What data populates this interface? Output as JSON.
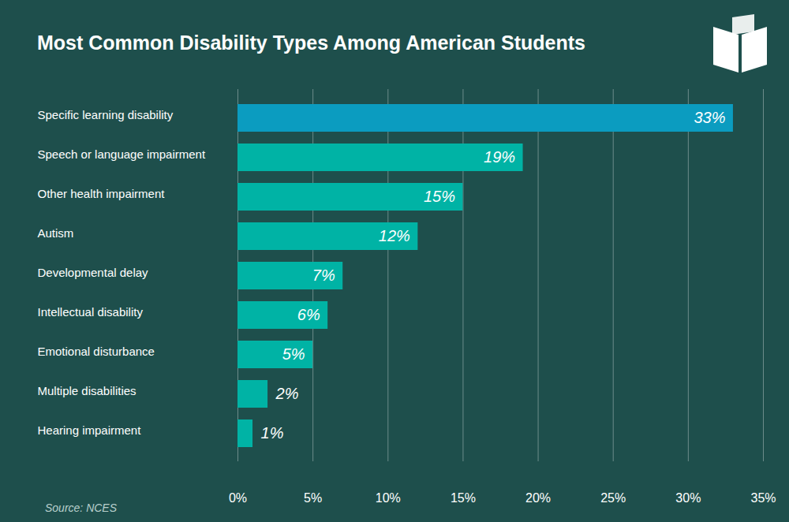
{
  "chart_data": {
    "type": "bar",
    "orientation": "horizontal",
    "title": "Most Common Disability Types Among American Students",
    "source": "Source: NCES",
    "categories": [
      "Specific learning disability",
      "Speech or language impairment",
      "Other health impairment",
      "Autism",
      "Developmental delay",
      "Intellectual disability",
      "Emotional disturbance",
      "Multiple disabilities",
      "Hearing impairment"
    ],
    "values": [
      33,
      19,
      15,
      12,
      7,
      6,
      5,
      2,
      1
    ],
    "value_labels": [
      "33%",
      "19%",
      "15%",
      "12%",
      "7%",
      "6%",
      "5%",
      "2%",
      "1%"
    ],
    "colors": [
      "#0b9cc0",
      "#00b3a5",
      "#00b3a5",
      "#00b3a5",
      "#00b3a5",
      "#00b3a5",
      "#00b3a5",
      "#00b3a5",
      "#00b3a5"
    ],
    "xlim": [
      0,
      35
    ],
    "xticks": [
      {
        "value": 0,
        "label": "0%"
      },
      {
        "value": 5,
        "label": "5%"
      },
      {
        "value": 10,
        "label": "10%"
      },
      {
        "value": 15,
        "label": "15%"
      },
      {
        "value": 20,
        "label": "20%"
      },
      {
        "value": 25,
        "label": "25%"
      },
      {
        "value": 30,
        "label": "30%"
      },
      {
        "value": 35,
        "label": "35%"
      }
    ],
    "grid": true,
    "data_labels": true
  }
}
